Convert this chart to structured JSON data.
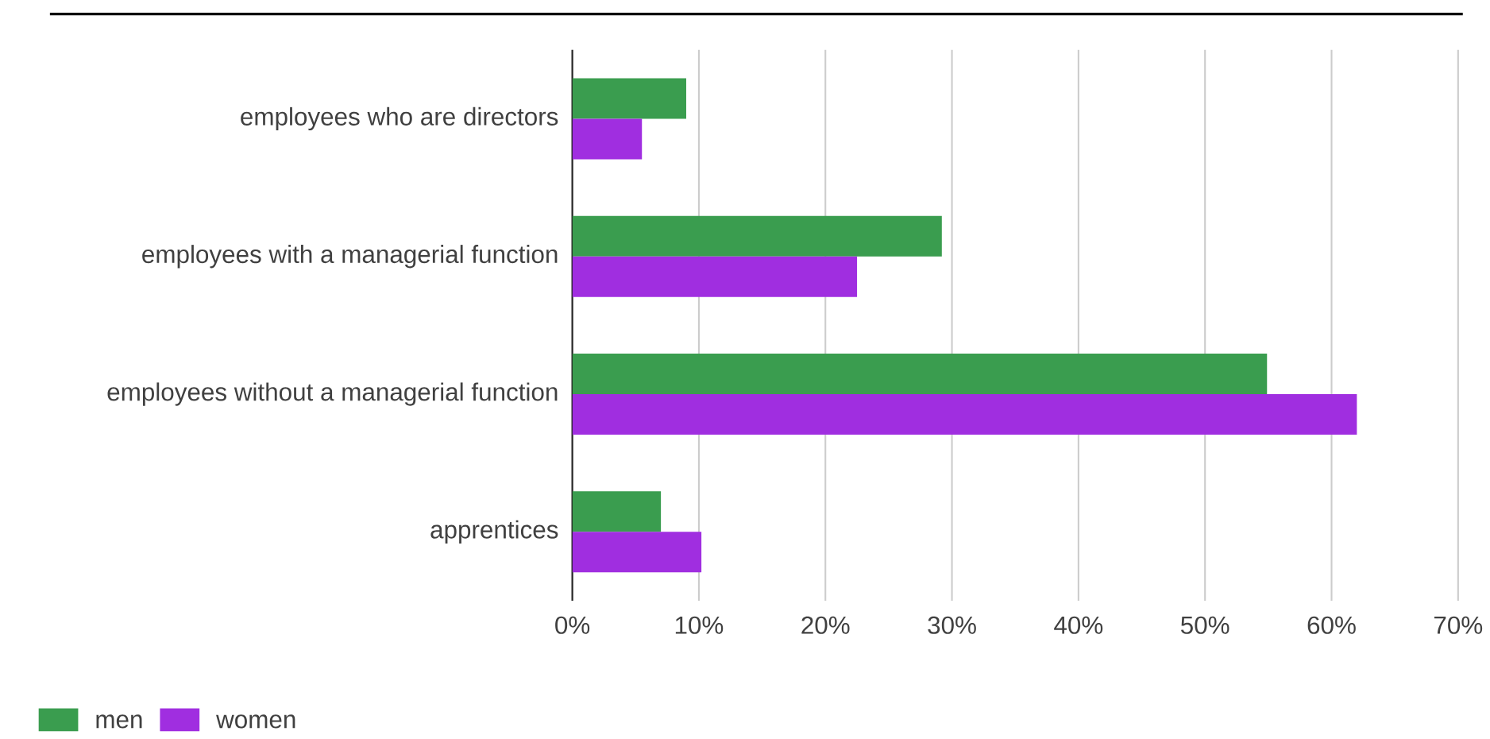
{
  "chart_data": {
    "type": "bar",
    "orientation": "horizontal",
    "categories": [
      "employees who are directors",
      "employees with a managerial function",
      "employees without a managerial function",
      "apprentices"
    ],
    "series": [
      {
        "name": "men",
        "color": "#3a9d4f",
        "values": [
          9.0,
          29.2,
          54.9,
          7.0
        ]
      },
      {
        "name": "women",
        "color": "#a02ee0",
        "values": [
          5.5,
          22.5,
          62.0,
          10.2
        ]
      }
    ],
    "xlim": [
      0,
      70
    ],
    "xticks": [
      {
        "value": 0,
        "label": "0%"
      },
      {
        "value": 10,
        "label": "10%"
      },
      {
        "value": 20,
        "label": "20%"
      },
      {
        "value": 30,
        "label": "30%"
      },
      {
        "value": 40,
        "label": "40%"
      },
      {
        "value": 50,
        "label": "50%"
      },
      {
        "value": 60,
        "label": "60%"
      },
      {
        "value": 70,
        "label": "70%"
      }
    ],
    "grid": "x",
    "legend": "bottom left"
  }
}
